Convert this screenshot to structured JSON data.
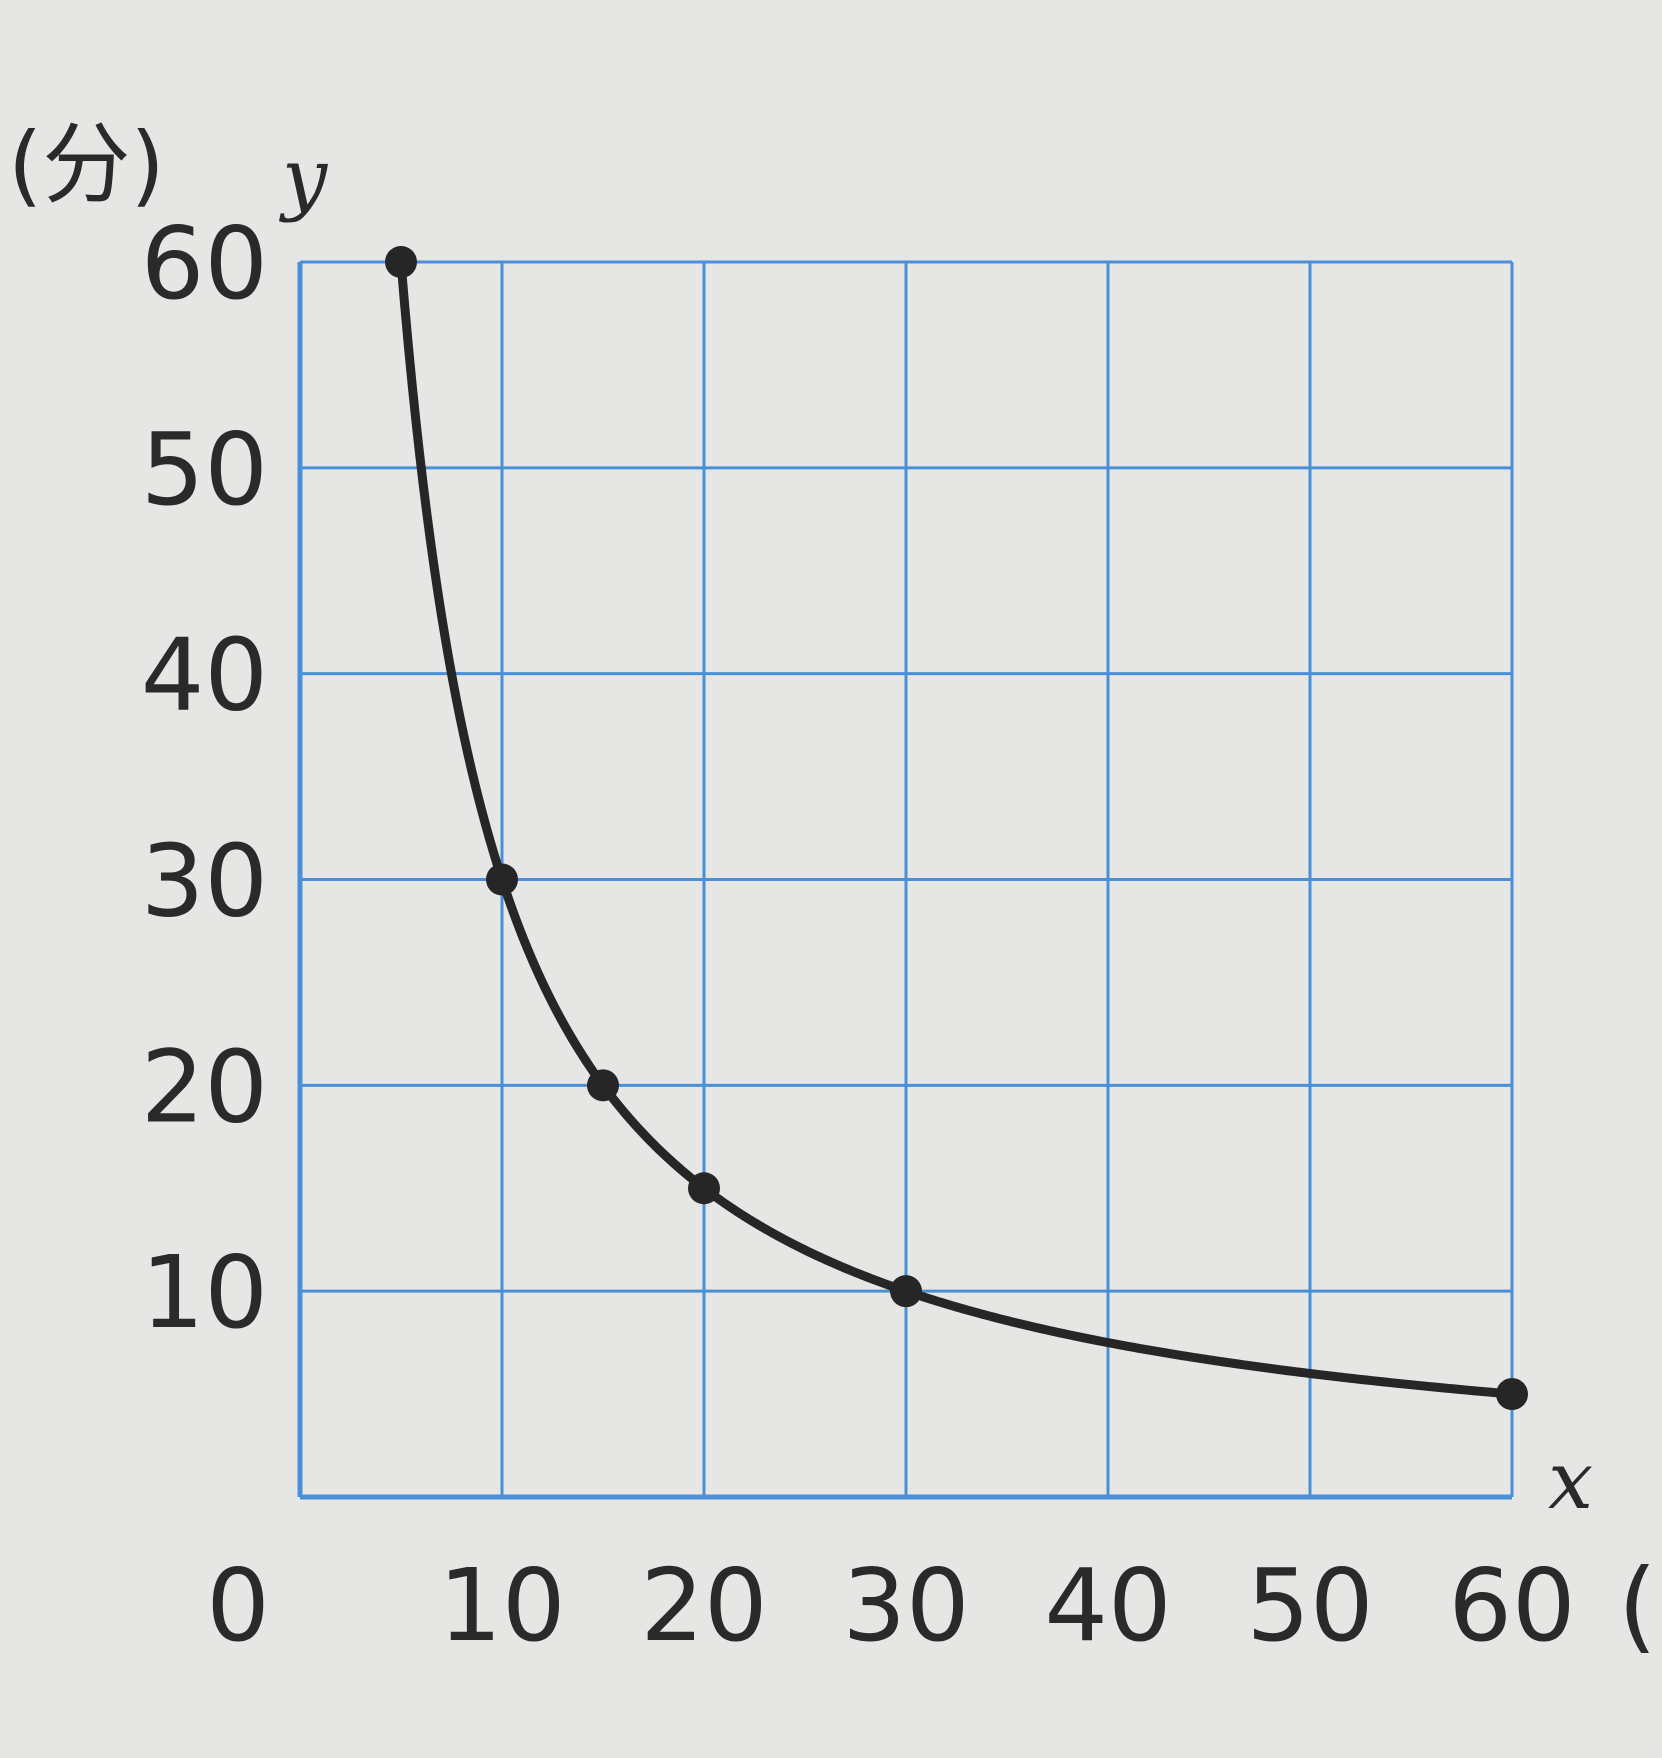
{
  "chart_data": {
    "type": "line",
    "y_unit_label": "(分)",
    "y_var": "y",
    "x_var": "x",
    "x_unit_label": "(",
    "origin_label": "0",
    "xlim": [
      0,
      60
    ],
    "ylim": [
      0,
      60
    ],
    "grid": true,
    "x_ticks": [
      10,
      20,
      30,
      40,
      50,
      60
    ],
    "y_ticks": [
      10,
      20,
      30,
      40,
      50,
      60
    ],
    "x_tick_labels": [
      "10",
      "20",
      "30",
      "40",
      "50",
      "60"
    ],
    "y_tick_labels": [
      "10",
      "20",
      "30",
      "40",
      "50",
      "60"
    ],
    "series": [
      {
        "points": [
          {
            "x": 5,
            "y": 60
          },
          {
            "x": 10,
            "y": 30
          },
          {
            "x": 15,
            "y": 20
          },
          {
            "x": 20,
            "y": 15
          },
          {
            "x": 30,
            "y": 10
          },
          {
            "x": 60,
            "y": 5
          }
        ]
      }
    ],
    "colors": {
      "grid": "#4a90d9",
      "curve": "#262626",
      "ticks": "#2a2a2a"
    }
  }
}
